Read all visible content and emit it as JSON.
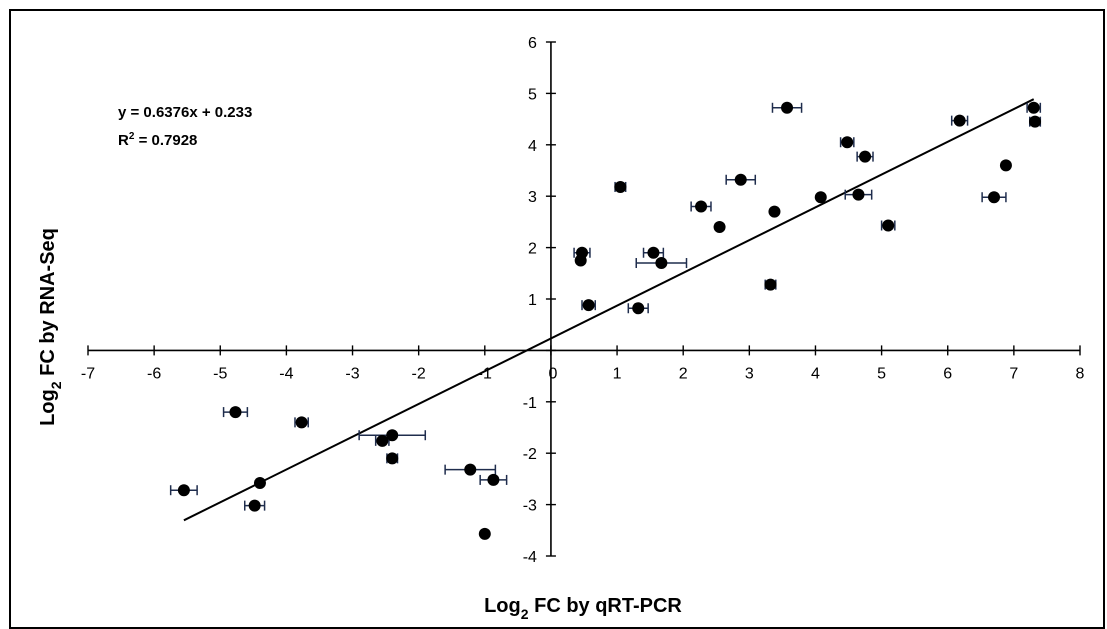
{
  "chart_data": {
    "type": "scatter",
    "title": "",
    "xlabel": {
      "main": "Log",
      "sub": "2",
      "rest": " FC by qRT-PCR"
    },
    "ylabel": {
      "main": "Log",
      "sub": "2",
      "rest": " FC by RNA-Seq"
    },
    "xlim": [
      -7,
      8
    ],
    "ylim": [
      -4,
      6
    ],
    "x_ticks": [
      -7,
      -6,
      -5,
      -4,
      -3,
      -2,
      -1,
      0,
      1,
      2,
      3,
      4,
      5,
      6,
      7,
      8
    ],
    "y_ticks": [
      -4,
      -3,
      -2,
      -1,
      0,
      1,
      2,
      3,
      4,
      5,
      6
    ],
    "grid": false,
    "legend": "none",
    "point_color": "#000000",
    "errorbar_color": "#1f2d4d",
    "annotations": {
      "equation": "y = 0.6376x + 0.233",
      "r2_main": "R",
      "r2_sup": "2",
      "r2_rest": " = 0.7928"
    },
    "trendline": {
      "slope": 0.6376,
      "intercept": 0.233,
      "x_range": [
        -5.55,
        7.3
      ]
    },
    "points": [
      {
        "x": -5.55,
        "y": -2.72,
        "xerr": 0.2
      },
      {
        "x": -4.77,
        "y": -1.2,
        "xerr": 0.18
      },
      {
        "x": -4.48,
        "y": -3.02,
        "xerr": 0.15
      },
      {
        "x": -4.4,
        "y": -2.58,
        "xerr": 0
      },
      {
        "x": -3.77,
        "y": -1.4,
        "xerr": 0.1
      },
      {
        "x": -2.55,
        "y": -1.76,
        "xerr": 0.1
      },
      {
        "x": -2.4,
        "y": -1.65,
        "xerr": 0.5
      },
      {
        "x": -2.4,
        "y": -2.1,
        "xerr": 0.08
      },
      {
        "x": -1.22,
        "y": -2.32,
        "xerr": 0.38
      },
      {
        "x": -0.87,
        "y": -2.52,
        "xerr": 0.2
      },
      {
        "x": -1.0,
        "y": -3.57,
        "xerr": 0
      },
      {
        "x": 0.47,
        "y": 1.9,
        "xerr": 0.12
      },
      {
        "x": 0.45,
        "y": 1.75,
        "xerr": 0
      },
      {
        "x": 0.57,
        "y": 0.88,
        "xerr": 0.1
      },
      {
        "x": 1.05,
        "y": 3.18,
        "xerr": 0.08
      },
      {
        "x": 1.32,
        "y": 0.82,
        "xerr": 0.15
      },
      {
        "x": 1.55,
        "y": 1.9,
        "xerr": 0.15
      },
      {
        "x": 1.67,
        "y": 1.7,
        "xerr": 0.38
      },
      {
        "x": 2.27,
        "y": 2.8,
        "xerr": 0.15
      },
      {
        "x": 2.55,
        "y": 2.4,
        "xerr": 0
      },
      {
        "x": 2.87,
        "y": 3.32,
        "xerr": 0.22
      },
      {
        "x": 3.32,
        "y": 1.28,
        "xerr": 0.08
      },
      {
        "x": 3.38,
        "y": 2.7,
        "xerr": 0
      },
      {
        "x": 3.57,
        "y": 4.72,
        "xerr": 0.22
      },
      {
        "x": 4.08,
        "y": 2.98,
        "xerr": 0
      },
      {
        "x": 4.48,
        "y": 4.05,
        "xerr": 0.1
      },
      {
        "x": 4.65,
        "y": 3.03,
        "xerr": 0.2
      },
      {
        "x": 4.75,
        "y": 3.77,
        "xerr": 0.12
      },
      {
        "x": 5.1,
        "y": 2.43,
        "xerr": 0.1
      },
      {
        "x": 6.18,
        "y": 4.47,
        "xerr": 0.12
      },
      {
        "x": 6.7,
        "y": 2.98,
        "xerr": 0.18
      },
      {
        "x": 6.88,
        "y": 3.6,
        "xerr": 0
      },
      {
        "x": 7.3,
        "y": 4.72,
        "xerr": 0.1
      },
      {
        "x": 7.32,
        "y": 4.45,
        "xerr": 0.08
      }
    ]
  }
}
